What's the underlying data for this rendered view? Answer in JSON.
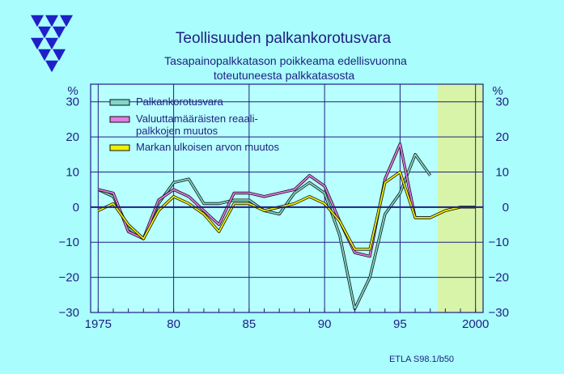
{
  "chart_data": {
    "type": "line",
    "title": "Teollisuuden  palkankorotusvara",
    "subtitle_line1": "Tasapainopalkkatason poikkeama edellisvuonna",
    "subtitle_line2": "toteutuneesta palkkatasosta",
    "unit_left": "%",
    "unit_right": "%",
    "source": "ETLA S98.1/b50",
    "xlim": [
      1974.5,
      2000.5
    ],
    "ylim": [
      -30,
      35
    ],
    "x_ticks": [
      1975,
      1980,
      1985,
      1990,
      1995,
      2000
    ],
    "x_tick_labels": [
      "1975",
      "80",
      "85",
      "90",
      "95",
      "2000"
    ],
    "y_ticks": [
      -30,
      -20,
      -10,
      0,
      10,
      20,
      30
    ],
    "y_tick_labels": [
      "−30",
      "−20",
      "−10",
      "0",
      "10",
      "20",
      "30"
    ],
    "forecast_region": [
      1997.5,
      2000.5
    ],
    "legend_position": "top-left",
    "legend": [
      "Palkankorotusvara",
      "Valuuttamääräisten reaali-",
      "palkkojen muutos",
      "Markan ulkoisen arvon muutos"
    ],
    "series": [
      {
        "name": "Palkankorotusvara",
        "color": "#7fd8c8",
        "x": [
          1975,
          1976,
          1977,
          1978,
          1979,
          1980,
          1981,
          1982,
          1983,
          1984,
          1985,
          1986,
          1987,
          1988,
          1989,
          1990,
          1991,
          1992,
          1993,
          1994,
          1995,
          1996,
          1997
        ],
        "values": [
          5,
          3,
          -6,
          -9,
          1,
          7,
          8,
          1,
          1,
          2,
          2,
          -1,
          -2,
          4,
          7,
          4,
          -8,
          -29,
          -20,
          -2,
          4,
          15,
          9
        ]
      },
      {
        "name": "Valuuttamääräisten reaali-palkkojen muutos",
        "color": "#e57ae5",
        "x": [
          1975,
          1976,
          1977,
          1978,
          1979,
          1980,
          1981,
          1982,
          1983,
          1984,
          1985,
          1986,
          1987,
          1988,
          1989,
          1990,
          1991,
          1992,
          1993,
          1994,
          1995,
          1996,
          1997
        ],
        "values": [
          5,
          4,
          -7,
          -9,
          2,
          5,
          3,
          -1,
          -5,
          4,
          4,
          3,
          4,
          5,
          9,
          6,
          -4,
          -13,
          -14,
          8,
          18,
          -3,
          -3
        ]
      },
      {
        "name": "Markan ulkoisen arvon muutos",
        "color": "#f0f000",
        "x": [
          1975,
          1976,
          1977,
          1978,
          1979,
          1980,
          1981,
          1982,
          1983,
          1984,
          1985,
          1986,
          1987,
          1988,
          1989,
          1990,
          1991,
          1992,
          1993,
          1994,
          1995,
          1996,
          1997,
          1998,
          1999,
          2000
        ],
        "values": [
          -1,
          1,
          -5,
          -9,
          -1,
          3,
          1,
          -2,
          -7,
          1,
          1,
          -1,
          0,
          1,
          3,
          1,
          -4,
          -12,
          -12,
          7,
          10,
          -3,
          -3,
          -1,
          0,
          0
        ]
      }
    ]
  }
}
